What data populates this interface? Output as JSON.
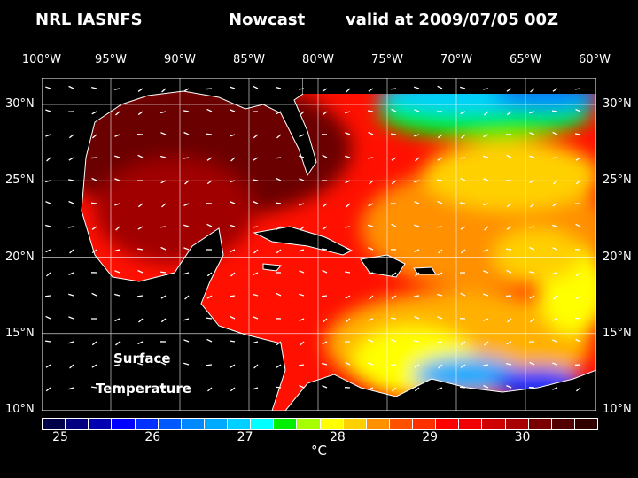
{
  "header": {
    "source": "NRL IASNFS",
    "product": "Nowcast",
    "valid": "valid at 2009/07/05 00Z"
  },
  "axes": {
    "lon_labels": [
      "100°W",
      "95°W",
      "90°W",
      "85°W",
      "80°W",
      "75°W",
      "70°W",
      "65°W",
      "60°W"
    ],
    "lat_labels": [
      "30°N",
      "25°N",
      "20°N",
      "15°N",
      "10°N"
    ]
  },
  "map_labels": {
    "line1": "Surface",
    "line2": "Temperature"
  },
  "colorbar": {
    "colors": [
      "#00004a",
      "#000080",
      "#0000b0",
      "#0000ff",
      "#0030ff",
      "#0058ff",
      "#0088ff",
      "#00aaff",
      "#00d0ff",
      "#00ffff",
      "#00ee00",
      "#a8ff00",
      "#ffff00",
      "#ffd000",
      "#ff9000",
      "#ff5000",
      "#ff3000",
      "#ff0000",
      "#f00000",
      "#d00000",
      "#a80000",
      "#780000",
      "#500000",
      "#300000"
    ],
    "tick_labels": [
      "25",
      "26",
      "27",
      "28",
      "29",
      "30"
    ],
    "unit": "°C"
  }
}
